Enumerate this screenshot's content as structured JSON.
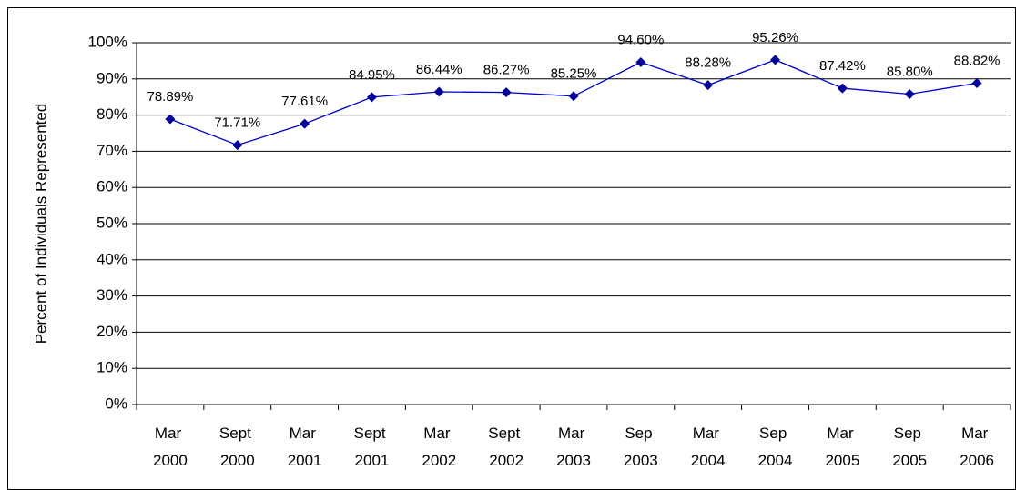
{
  "chart_data": {
    "type": "line",
    "y_label": "Percent of Individuals Represented",
    "categories": [
      "Mar 2000",
      "Sept 2000",
      "Mar 2001",
      "Sept 2001",
      "Mar 2002",
      "Sept 2002",
      "Mar 2003",
      "Sep 2003",
      "Mar 2004",
      "Sep 2004",
      "Mar 2005",
      "Sep 2005",
      "Mar 2006"
    ],
    "values": [
      78.89,
      71.71,
      77.61,
      84.95,
      86.44,
      86.27,
      85.25,
      94.6,
      88.28,
      95.26,
      87.42,
      85.8,
      88.82
    ],
    "value_labels": [
      "78.89%",
      "71.71%",
      "77.61%",
      "84.95%",
      "86.44%",
      "86.27%",
      "85.25%",
      "94.60%",
      "88.28%",
      "95.26%",
      "87.42%",
      "85.80%",
      "88.82%"
    ],
    "color": "#000099",
    "ylim": [
      0,
      100
    ],
    "yticks": [
      {
        "value": 0,
        "label": "0%"
      },
      {
        "value": 10,
        "label": "10%"
      },
      {
        "value": 20,
        "label": "20%"
      },
      {
        "value": 30,
        "label": "30%"
      },
      {
        "value": 40,
        "label": "40%"
      },
      {
        "value": 50,
        "label": "50%"
      },
      {
        "value": 60,
        "label": "60%"
      },
      {
        "value": 70,
        "label": "70%"
      },
      {
        "value": 80,
        "label": "80%"
      },
      {
        "value": 90,
        "label": "90%"
      },
      {
        "value": 100,
        "label": "100%"
      }
    ],
    "grid": true
  }
}
